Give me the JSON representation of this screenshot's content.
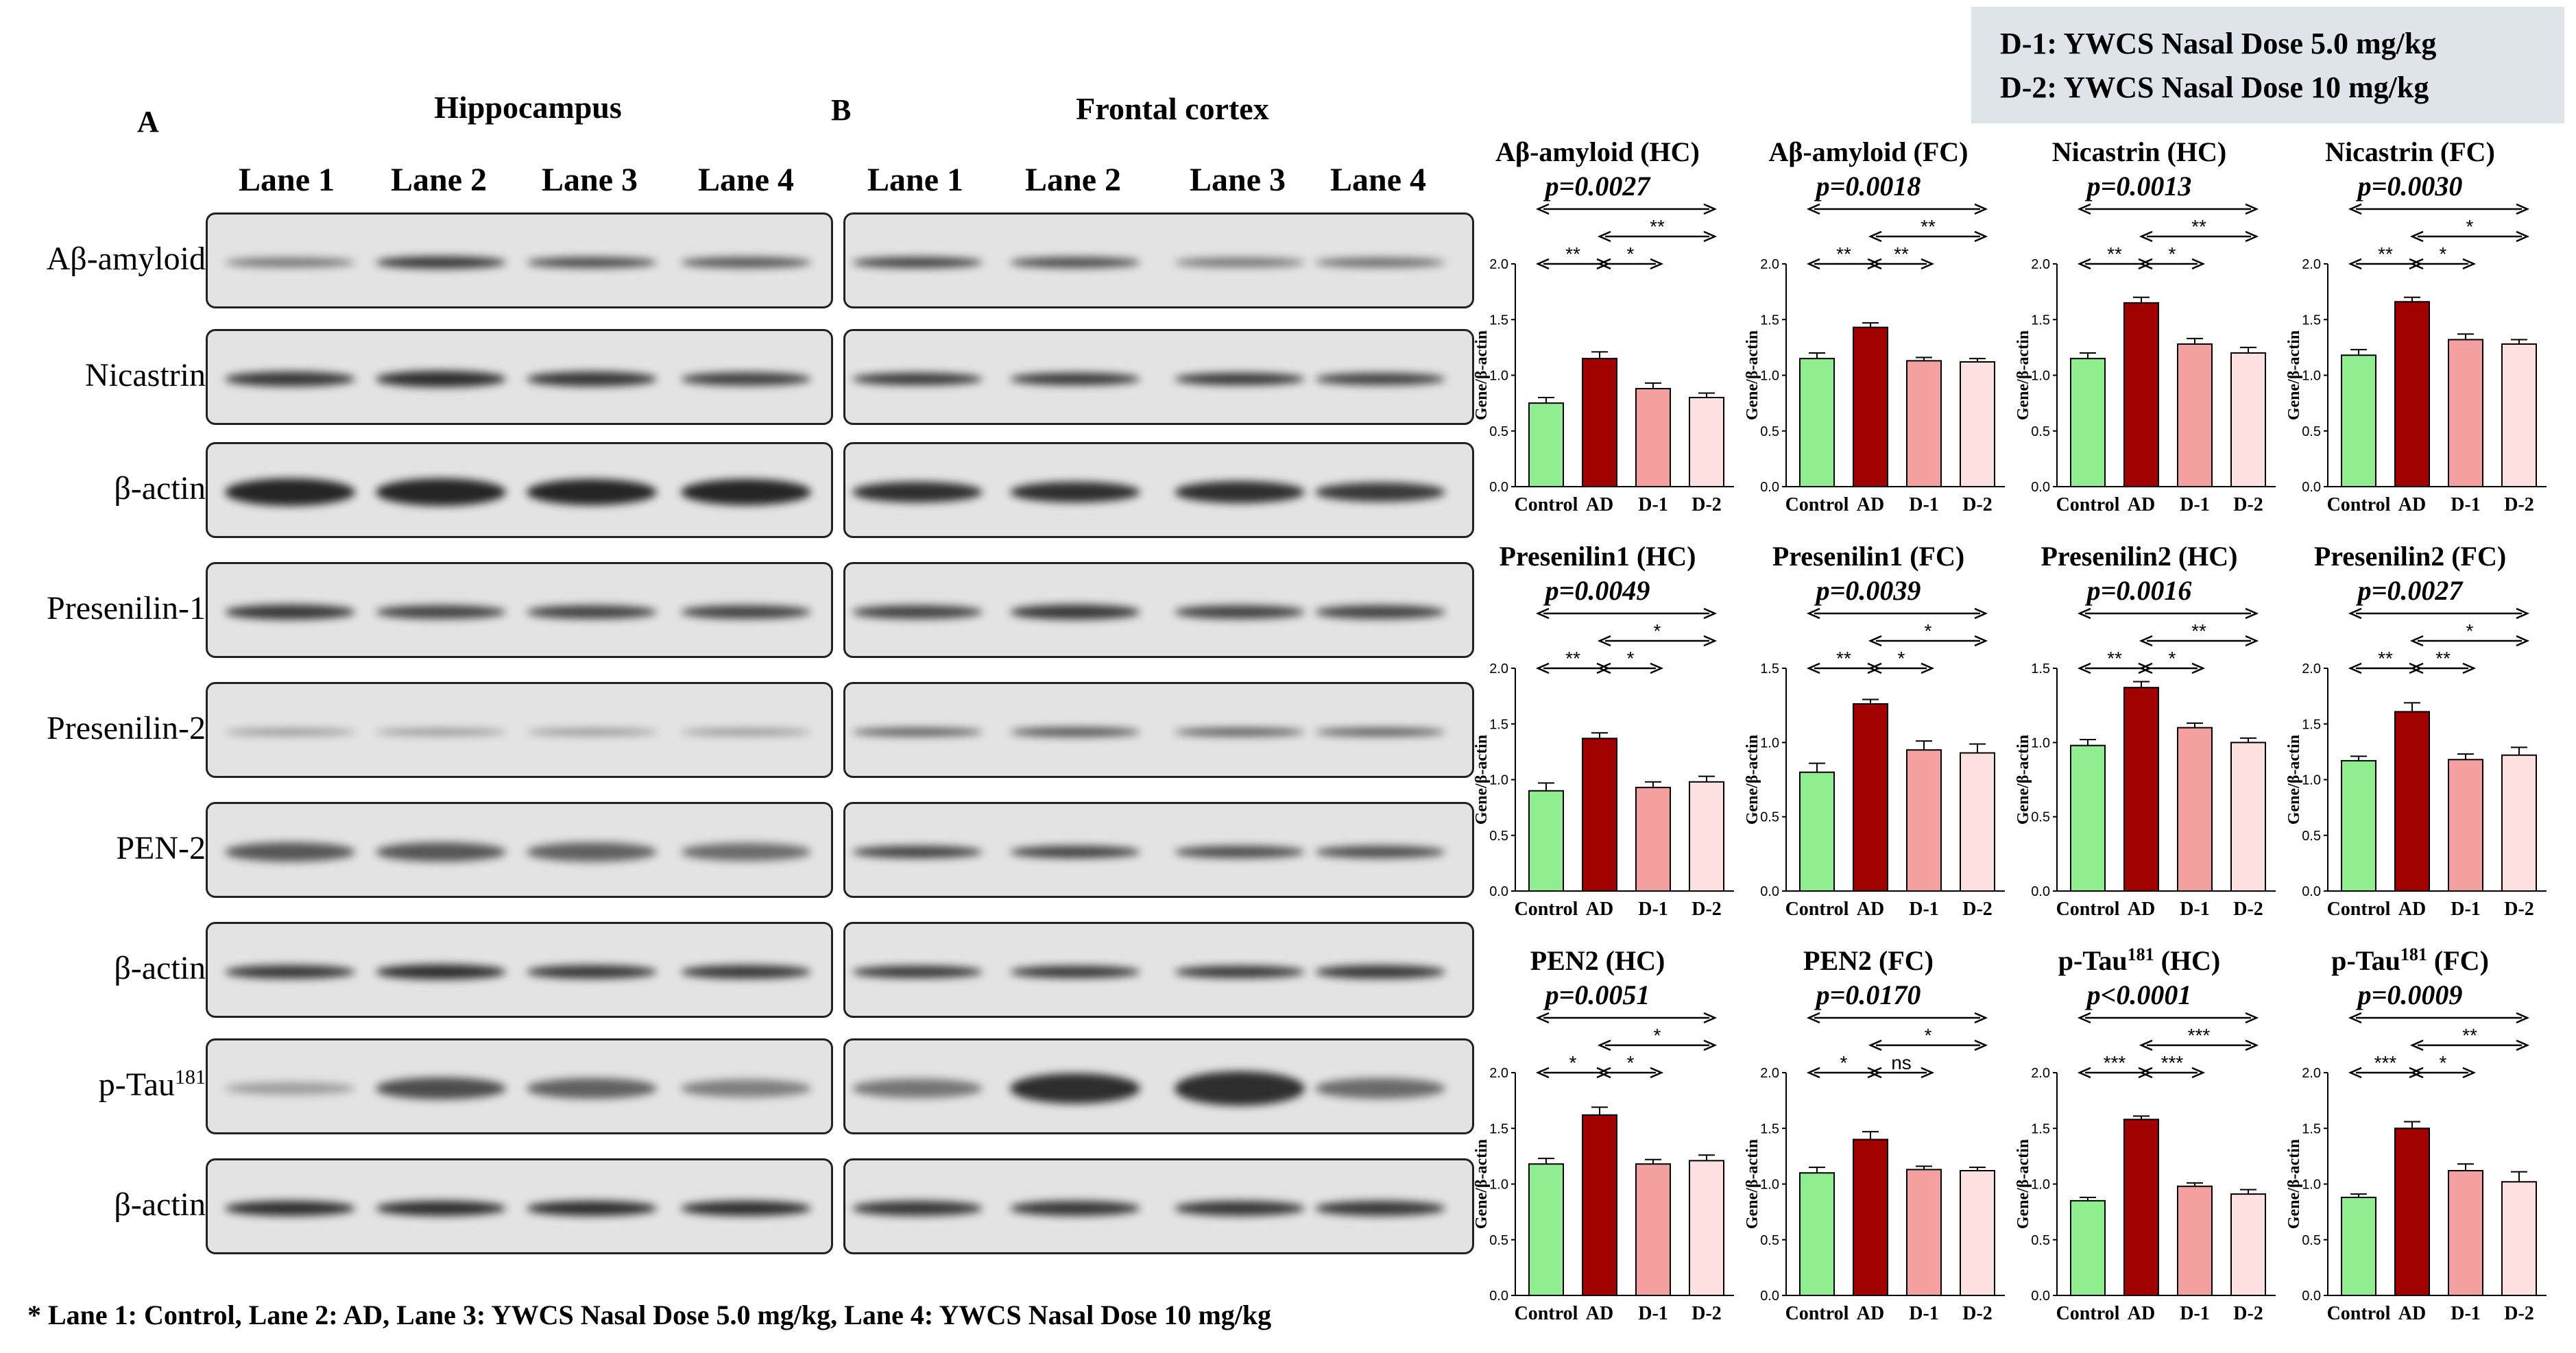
{
  "legend": {
    "line1": "D-1: YWCS Nasal Dose 5.0 mg/kg",
    "line2": "D-2: YWCS Nasal Dose 10 mg/kg"
  },
  "panels": {
    "a": {
      "letter": "A",
      "title": "Hippocampus"
    },
    "b": {
      "letter": "B",
      "title": "Frontal cortex"
    }
  },
  "lanes": [
    "Lane 1",
    "Lane 2",
    "Lane 3",
    "Lane 4"
  ],
  "proteins": [
    "Aβ-amyloid",
    "Nicastrin",
    "β-actin",
    "Presenilin-1",
    "Presenilin-2",
    "PEN-2",
    "β-actin",
    "p-Tau181",
    "β-actin"
  ],
  "footnote": "* Lane 1: Control, Lane 2: AD, Lane 3: YWCS Nasal Dose 5.0 mg/kg, Lane 4: YWCS Nasal Dose 10 mg/kg",
  "colors": {
    "control": "#90ee90",
    "ad": "#a00000",
    "d1": "#f4a0a0",
    "d2": "#fde0e0",
    "legend_bg": "#dfe3ea"
  },
  "chart_data": [
    {
      "type": "bar",
      "title": "Aβ-amyloid (HC)",
      "pvalue": "p=0.0027",
      "ylabel": "Gene/β-actin",
      "categories": [
        "Control",
        "AD",
        "D-1",
        "D-2"
      ],
      "values": [
        0.75,
        1.15,
        0.88,
        0.8
      ],
      "errors": [
        0.05,
        0.06,
        0.05,
        0.04
      ],
      "ylim": [
        0,
        2.0
      ],
      "yticks": [
        "0.0",
        "0.5",
        "1.0",
        "1.5",
        "2.0"
      ],
      "brackets": [
        {
          "from": 0,
          "to": 3,
          "label": ""
        },
        {
          "from": 1,
          "to": 3,
          "label": "**"
        },
        {
          "from": 0,
          "to": 1,
          "label": "**"
        },
        {
          "from": 1,
          "to": 2,
          "label": "*"
        }
      ]
    },
    {
      "type": "bar",
      "title": "Aβ-amyloid (FC)",
      "pvalue": "p=0.0018",
      "ylabel": "Gene/β-actin",
      "categories": [
        "Control",
        "AD",
        "D-1",
        "D-2"
      ],
      "values": [
        1.15,
        1.43,
        1.13,
        1.12
      ],
      "errors": [
        0.05,
        0.04,
        0.03,
        0.03
      ],
      "ylim": [
        0,
        2.0
      ],
      "yticks": [
        "0.0",
        "0.5",
        "1.0",
        "1.5",
        "2.0"
      ],
      "brackets": [
        {
          "from": 0,
          "to": 3,
          "label": ""
        },
        {
          "from": 1,
          "to": 3,
          "label": "**"
        },
        {
          "from": 0,
          "to": 1,
          "label": "**"
        },
        {
          "from": 1,
          "to": 2,
          "label": "**"
        }
      ]
    },
    {
      "type": "bar",
      "title": "Nicastrin (HC)",
      "pvalue": "p=0.0013",
      "ylabel": "Gene/β-actin",
      "categories": [
        "Control",
        "AD",
        "D-1",
        "D-2"
      ],
      "values": [
        1.15,
        1.65,
        1.28,
        1.2
      ],
      "errors": [
        0.05,
        0.05,
        0.05,
        0.05
      ],
      "ylim": [
        0,
        2.0
      ],
      "yticks": [
        "0.0",
        "0.5",
        "1.0",
        "1.5",
        "2.0"
      ],
      "brackets": [
        {
          "from": 0,
          "to": 3,
          "label": ""
        },
        {
          "from": 1,
          "to": 3,
          "label": "**"
        },
        {
          "from": 0,
          "to": 1,
          "label": "**"
        },
        {
          "from": 1,
          "to": 2,
          "label": "*"
        }
      ]
    },
    {
      "type": "bar",
      "title": "Nicastrin (FC)",
      "pvalue": "p=0.0030",
      "ylabel": "Gene/β-actin",
      "categories": [
        "Control",
        "AD",
        "D-1",
        "D-2"
      ],
      "values": [
        1.18,
        1.66,
        1.32,
        1.28
      ],
      "errors": [
        0.05,
        0.04,
        0.05,
        0.04
      ],
      "ylim": [
        0,
        2.0
      ],
      "yticks": [
        "0.0",
        "0.5",
        "1.0",
        "1.5",
        "2.0"
      ],
      "brackets": [
        {
          "from": 0,
          "to": 3,
          "label": ""
        },
        {
          "from": 1,
          "to": 3,
          "label": "*"
        },
        {
          "from": 0,
          "to": 1,
          "label": "**"
        },
        {
          "from": 1,
          "to": 2,
          "label": "*"
        }
      ]
    },
    {
      "type": "bar",
      "title": "Presenilin1 (HC)",
      "pvalue": "p=0.0049",
      "ylabel": "Gene/β-actin",
      "categories": [
        "Control",
        "AD",
        "D-1",
        "D-2"
      ],
      "values": [
        0.9,
        1.37,
        0.93,
        0.98
      ],
      "errors": [
        0.07,
        0.05,
        0.05,
        0.05
      ],
      "ylim": [
        0,
        2.0
      ],
      "yticks": [
        "0.0",
        "0.5",
        "1.0",
        "1.5",
        "2.0"
      ],
      "brackets": [
        {
          "from": 0,
          "to": 3,
          "label": ""
        },
        {
          "from": 1,
          "to": 3,
          "label": "*"
        },
        {
          "from": 0,
          "to": 1,
          "label": "**"
        },
        {
          "from": 1,
          "to": 2,
          "label": "*"
        }
      ]
    },
    {
      "type": "bar",
      "title": "Presenilin1 (FC)",
      "pvalue": "p=0.0039",
      "ylabel": "Gene/β-actin",
      "categories": [
        "Control",
        "AD",
        "D-1",
        "D-2"
      ],
      "values": [
        0.8,
        1.26,
        0.95,
        0.93
      ],
      "errors": [
        0.06,
        0.03,
        0.06,
        0.06
      ],
      "ylim": [
        0,
        1.5
      ],
      "yticks": [
        "0.0",
        "0.5",
        "1.0",
        "1.5"
      ],
      "brackets": [
        {
          "from": 0,
          "to": 3,
          "label": ""
        },
        {
          "from": 1,
          "to": 3,
          "label": "*"
        },
        {
          "from": 0,
          "to": 1,
          "label": "**"
        },
        {
          "from": 1,
          "to": 2,
          "label": "*"
        }
      ]
    },
    {
      "type": "bar",
      "title": "Presenilin2 (HC)",
      "pvalue": "p=0.0016",
      "ylabel": "Gene/β-actin",
      "categories": [
        "Control",
        "AD",
        "D-1",
        "D-2"
      ],
      "values": [
        0.98,
        1.37,
        1.1,
        1.0
      ],
      "errors": [
        0.04,
        0.04,
        0.03,
        0.03
      ],
      "ylim": [
        0,
        1.5
      ],
      "yticks": [
        "0.0",
        "0.5",
        "1.0",
        "1.5"
      ],
      "brackets": [
        {
          "from": 0,
          "to": 3,
          "label": ""
        },
        {
          "from": 1,
          "to": 3,
          "label": "**"
        },
        {
          "from": 0,
          "to": 1,
          "label": "**"
        },
        {
          "from": 1,
          "to": 2,
          "label": "*"
        }
      ]
    },
    {
      "type": "bar",
      "title": "Presenilin2 (FC)",
      "pvalue": "p=0.0027",
      "ylabel": "Gene/β-actin",
      "categories": [
        "Control",
        "AD",
        "D-1",
        "D-2"
      ],
      "values": [
        1.17,
        1.61,
        1.18,
        1.22
      ],
      "errors": [
        0.04,
        0.08,
        0.05,
        0.07
      ],
      "ylim": [
        0,
        2.0
      ],
      "yticks": [
        "0.0",
        "0.5",
        "1.0",
        "1.5",
        "2.0"
      ],
      "brackets": [
        {
          "from": 0,
          "to": 3,
          "label": ""
        },
        {
          "from": 1,
          "to": 3,
          "label": "*"
        },
        {
          "from": 0,
          "to": 1,
          "label": "**"
        },
        {
          "from": 1,
          "to": 2,
          "label": "**"
        }
      ]
    },
    {
      "type": "bar",
      "title": "PEN2 (HC)",
      "pvalue": "p=0.0051",
      "ylabel": "Gene/β-actin",
      "categories": [
        "Control",
        "AD",
        "D-1",
        "D-2"
      ],
      "values": [
        1.18,
        1.62,
        1.18,
        1.21
      ],
      "errors": [
        0.05,
        0.07,
        0.04,
        0.05
      ],
      "ylim": [
        0,
        2.0
      ],
      "yticks": [
        "0.0",
        "0.5",
        "1.0",
        "1.5",
        "2.0"
      ],
      "brackets": [
        {
          "from": 0,
          "to": 3,
          "label": ""
        },
        {
          "from": 1,
          "to": 3,
          "label": "*"
        },
        {
          "from": 0,
          "to": 1,
          "label": "*"
        },
        {
          "from": 1,
          "to": 2,
          "label": "*"
        }
      ]
    },
    {
      "type": "bar",
      "title": "PEN2 (FC)",
      "pvalue": "p=0.0170",
      "ylabel": "Gene/β-actin",
      "categories": [
        "Control",
        "AD",
        "D-1",
        "D-2"
      ],
      "values": [
        1.1,
        1.4,
        1.13,
        1.12
      ],
      "errors": [
        0.05,
        0.07,
        0.03,
        0.03
      ],
      "ylim": [
        0,
        2.0
      ],
      "yticks": [
        "0.0",
        "0.5",
        "1.0",
        "1.5",
        "2.0"
      ],
      "brackets": [
        {
          "from": 0,
          "to": 3,
          "label": ""
        },
        {
          "from": 1,
          "to": 3,
          "label": "*"
        },
        {
          "from": 0,
          "to": 1,
          "label": "*"
        },
        {
          "from": 1,
          "to": 2,
          "label": "ns"
        }
      ]
    },
    {
      "type": "bar",
      "title": "p-Tau181 (HC)",
      "pvalue": "p<0.0001",
      "ylabel": "Gene/β-actin",
      "categories": [
        "Control",
        "AD",
        "D-1",
        "D-2"
      ],
      "values": [
        0.85,
        1.58,
        0.98,
        0.91
      ],
      "errors": [
        0.03,
        0.03,
        0.03,
        0.04
      ],
      "ylim": [
        0,
        2.0
      ],
      "yticks": [
        "0.0",
        "0.5",
        "1.0",
        "1.5",
        "2.0"
      ],
      "brackets": [
        {
          "from": 0,
          "to": 3,
          "label": ""
        },
        {
          "from": 1,
          "to": 3,
          "label": "***"
        },
        {
          "from": 0,
          "to": 1,
          "label": "***"
        },
        {
          "from": 1,
          "to": 2,
          "label": "***"
        }
      ]
    },
    {
      "type": "bar",
      "title": "p-Tau181 (FC)",
      "pvalue": "p=0.0009",
      "ylabel": "Gene/β-actin",
      "categories": [
        "Control",
        "AD",
        "D-1",
        "D-2"
      ],
      "values": [
        0.88,
        1.5,
        1.12,
        1.02
      ],
      "errors": [
        0.03,
        0.06,
        0.06,
        0.09
      ],
      "ylim": [
        0,
        2.0
      ],
      "yticks": [
        "0.0",
        "0.5",
        "1.0",
        "1.5",
        "2.0"
      ],
      "brackets": [
        {
          "from": 0,
          "to": 3,
          "label": ""
        },
        {
          "from": 1,
          "to": 3,
          "label": "**"
        },
        {
          "from": 0,
          "to": 1,
          "label": "***"
        },
        {
          "from": 1,
          "to": 2,
          "label": "*"
        }
      ]
    }
  ]
}
